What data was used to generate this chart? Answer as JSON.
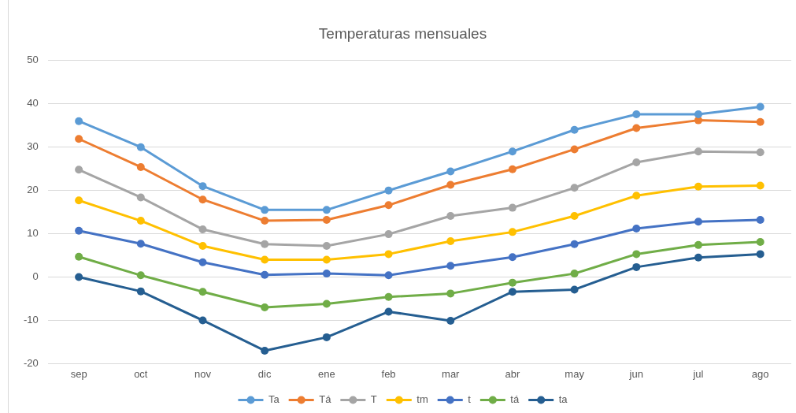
{
  "chart_data": {
    "type": "line",
    "title": "Temperaturas mensuales",
    "categories": [
      "sep",
      "oct",
      "nov",
      "dic",
      "ene",
      "feb",
      "mar",
      "abr",
      "may",
      "jun",
      "jul",
      "ago"
    ],
    "series": [
      {
        "name": "Ta",
        "color": "#5b9bd5",
        "values": [
          36.0,
          30.0,
          21.0,
          15.5,
          15.5,
          20.0,
          24.4,
          29.0,
          34.0,
          37.6,
          37.6,
          39.3
        ]
      },
      {
        "name": "Tá",
        "color": "#ed7d31",
        "values": [
          31.9,
          25.4,
          17.9,
          13.0,
          13.2,
          16.6,
          21.3,
          24.9,
          29.5,
          34.4,
          36.2,
          35.8
        ]
      },
      {
        "name": "T",
        "color": "#a5a5a5",
        "values": [
          24.8,
          18.4,
          11.0,
          7.6,
          7.2,
          9.9,
          14.1,
          16.0,
          20.6,
          26.5,
          29.0,
          28.8
        ]
      },
      {
        "name": "tm",
        "color": "#ffc000",
        "values": [
          17.7,
          13.0,
          7.2,
          4.0,
          4.0,
          5.3,
          8.3,
          10.4,
          14.1,
          18.8,
          20.9,
          21.1
        ]
      },
      {
        "name": "t",
        "color": "#4472c4",
        "values": [
          10.7,
          7.7,
          3.4,
          0.5,
          0.8,
          0.4,
          2.6,
          4.6,
          7.6,
          11.2,
          12.8,
          13.2
        ]
      },
      {
        "name": "tá",
        "color": "#70ad47",
        "values": [
          4.7,
          0.4,
          -3.4,
          -7.0,
          -6.2,
          -4.6,
          -3.8,
          -1.3,
          0.8,
          5.3,
          7.4,
          8.1
        ]
      },
      {
        "name": "ta",
        "color": "#255e91",
        "values": [
          0.0,
          -3.3,
          -10.0,
          -17.0,
          -13.9,
          -8.0,
          -10.1,
          -3.4,
          -2.9,
          2.3,
          4.5,
          5.3
        ]
      }
    ],
    "ylim": [
      -20,
      50
    ],
    "yticks": [
      -20,
      -10,
      0,
      10,
      20,
      30,
      40,
      50
    ],
    "grid": "y",
    "legend": "bottom",
    "marker": "circle",
    "line_style": "solid"
  }
}
